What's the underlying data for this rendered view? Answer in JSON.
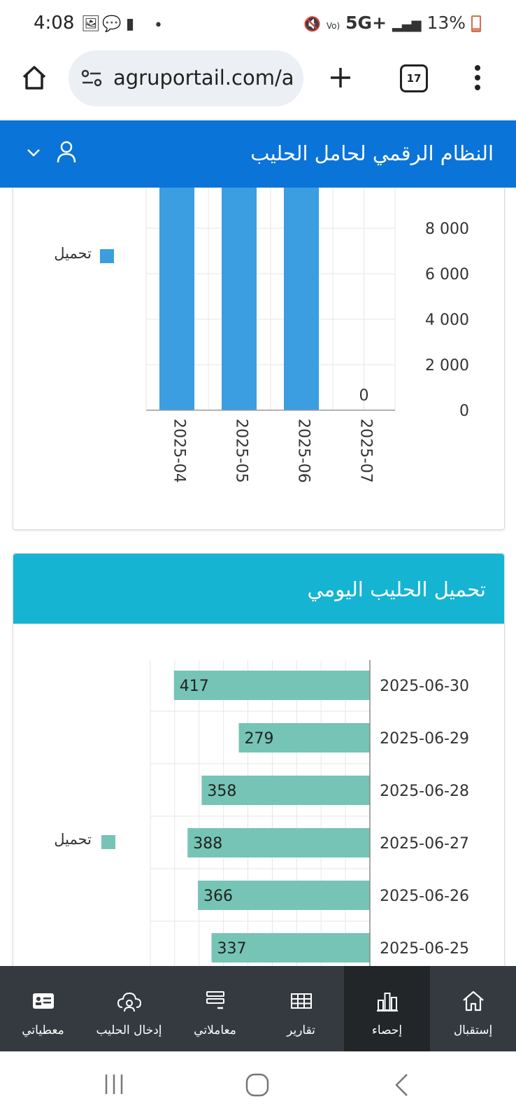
{
  "status_bar": {
    "time": "4:08",
    "network": "5G+",
    "battery": "13%"
  },
  "browser": {
    "url": "agruportail.com/a",
    "tab_count": "17"
  },
  "app": {
    "title": "النظام الرقمي لحامل الحليب"
  },
  "monthly_chart": {
    "chart_data": {
      "type": "bar",
      "categories": [
        "2025-04",
        "2025-05",
        "2025-06",
        "2025-07"
      ],
      "series": [
        {
          "name": "تحميل",
          "values": [
            10000,
            10000,
            10000,
            0
          ]
        }
      ],
      "y_ticks": [
        "0",
        "2 000",
        "4 000",
        "6 000",
        "8 000"
      ],
      "data_labels": [
        "0"
      ],
      "ylim": [
        0,
        10000
      ],
      "legend": "left",
      "grid": true,
      "color": "#3a9ee0"
    },
    "legend_label": "تحميل"
  },
  "daily_card": {
    "title": "تحميل الحليب اليومي",
    "legend_label": "تحميل",
    "chart_data": {
      "type": "bar",
      "orientation": "horizontal",
      "categories": [
        "2025-06-30",
        "2025-06-29",
        "2025-06-28",
        "2025-06-27",
        "2025-06-26",
        "2025-06-25"
      ],
      "series": [
        {
          "name": "تحميل",
          "values": [
            417,
            279,
            358,
            388,
            366,
            337
          ]
        }
      ],
      "xlim": [
        0,
        450
      ],
      "legend": "left",
      "grid": true,
      "color": "#76c4b5"
    }
  },
  "bottom_nav": {
    "items": [
      {
        "label": "إستقبال",
        "icon": "home-icon",
        "active": false
      },
      {
        "label": "إحصاء",
        "icon": "bar-chart-icon",
        "active": true
      },
      {
        "label": "تقارير",
        "icon": "table-icon",
        "active": false
      },
      {
        "label": "معاملاتي",
        "icon": "transactions-icon",
        "active": false
      },
      {
        "label": "إدخال الحليب",
        "icon": "cloud-user-icon",
        "active": false
      },
      {
        "label": "معطياتي",
        "icon": "id-card-icon",
        "active": false
      }
    ]
  }
}
